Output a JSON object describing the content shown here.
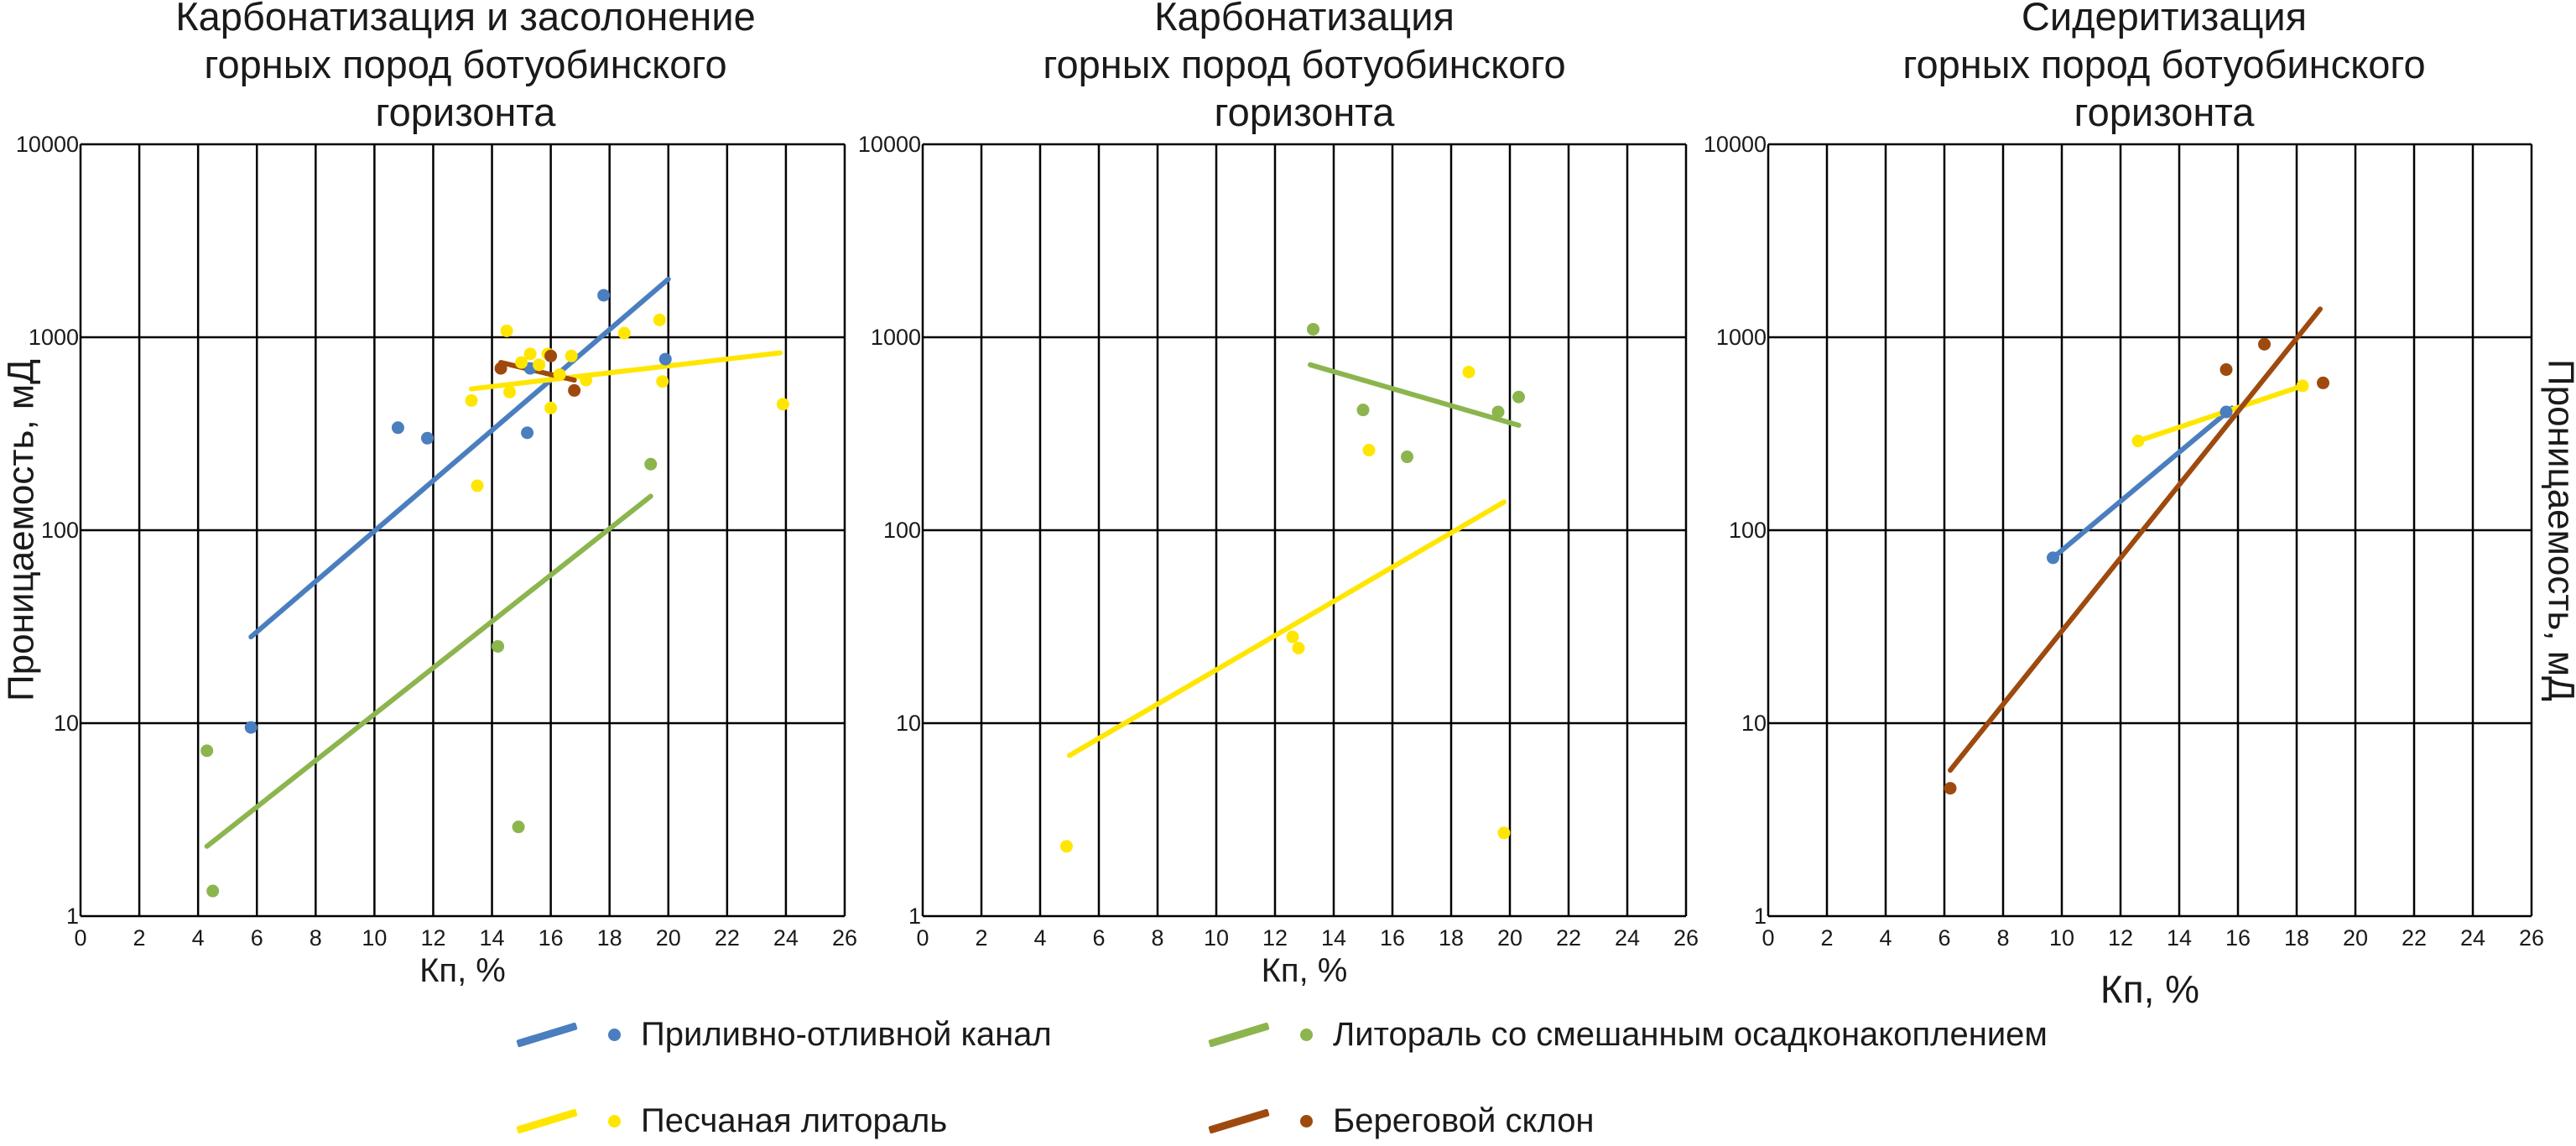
{
  "colors": {
    "blue": "#4a7ebf",
    "green": "#8cb54e",
    "yellow": "#ffe600",
    "brown": "#9e4a0e",
    "grid": "#000000"
  },
  "legend": [
    {
      "label": "Приливно-отливной канал",
      "color_key": "blue"
    },
    {
      "label": "Литораль со смешанным осадконакоплением",
      "color_key": "green"
    },
    {
      "label": "Песчаная литораль",
      "color_key": "yellow"
    },
    {
      "label": "Береговой склон",
      "color_key": "brown"
    }
  ],
  "chart_data": [
    {
      "type": "scatter",
      "title": "Карбонатизация и засолонение горных пород ботуобинского горизонта",
      "title_lines": [
        "Карбонатизация и засолонение",
        "горных пород ботуобинского",
        "горизонта"
      ],
      "xlabel": "Кп, %",
      "ylabel": "Проницаемость, мД",
      "xlim": [
        0,
        26
      ],
      "ylim": [
        1,
        10000
      ],
      "yscale": "log",
      "x_ticks": [
        "0",
        "2",
        "4",
        "6",
        "8",
        "10",
        "12",
        "14",
        "16",
        "18",
        "20",
        "22",
        "24",
        "26"
      ],
      "y_ticks": [
        "1",
        "10",
        "100",
        "1000",
        "10000"
      ],
      "grid": true,
      "series": [
        {
          "name": "Приливно-отливной канал",
          "color_key": "blue",
          "points": [
            [
              5.8,
              9.5
            ],
            [
              10.8,
              340
            ],
            [
              11.8,
              300
            ],
            [
              15.2,
              320
            ],
            [
              15.3,
              690
            ],
            [
              17.8,
              1650
            ],
            [
              19.9,
              770
            ]
          ],
          "trend": [
            [
              5.8,
              28
            ],
            [
              20.0,
              2000
            ]
          ]
        },
        {
          "name": "Литораль со смешанным осадконакоплением",
          "color_key": "green",
          "points": [
            [
              4.3,
              7.2
            ],
            [
              4.5,
              1.35
            ],
            [
              14.2,
              25
            ],
            [
              14.9,
              2.9
            ],
            [
              19.4,
              220
            ]
          ],
          "trend": [
            [
              4.3,
              2.3
            ],
            [
              19.4,
              150
            ]
          ]
        },
        {
          "name": "Песчаная литораль",
          "color_key": "yellow",
          "points": [
            [
              13.3,
              470
            ],
            [
              13.5,
              170
            ],
            [
              14.5,
              1080
            ],
            [
              14.6,
              520
            ],
            [
              15.0,
              740
            ],
            [
              15.3,
              820
            ],
            [
              15.6,
              720
            ],
            [
              15.9,
              820
            ],
            [
              16.0,
              430
            ],
            [
              16.3,
              640
            ],
            [
              16.7,
              800
            ],
            [
              17.2,
              600
            ],
            [
              18.5,
              1050
            ],
            [
              19.7,
              1230
            ],
            [
              19.8,
              590
            ],
            [
              23.9,
              450
            ]
          ],
          "trend": [
            [
              13.3,
              540
            ],
            [
              23.8,
              830
            ]
          ]
        },
        {
          "name": "Береговой склон",
          "color_key": "brown",
          "points": [
            [
              14.3,
              690
            ],
            [
              16.0,
              800
            ],
            [
              16.8,
              530
            ]
          ],
          "trend": [
            [
              14.3,
              740
            ],
            [
              16.8,
              600
            ]
          ]
        }
      ]
    },
    {
      "type": "scatter",
      "title": "Карбонатизация горных пород ботуобинского горизонта",
      "title_lines": [
        "Карбонатизация",
        "горных пород ботуобинского",
        "горизонта"
      ],
      "xlabel": "Кп, %",
      "ylabel": "",
      "xlim": [
        0,
        26
      ],
      "ylim": [
        1,
        10000
      ],
      "yscale": "log",
      "x_ticks": [
        "0",
        "2",
        "4",
        "6",
        "8",
        "10",
        "12",
        "14",
        "16",
        "18",
        "20",
        "22",
        "24",
        "26"
      ],
      "y_ticks": [
        "1",
        "10",
        "100",
        "1000",
        "10000"
      ],
      "grid": true,
      "series": [
        {
          "name": "Литораль со смешанным осадконакоплением",
          "color_key": "green",
          "points": [
            [
              13.3,
              1100
            ],
            [
              15.0,
              420
            ],
            [
              16.5,
              240
            ],
            [
              19.6,
              410
            ],
            [
              20.3,
              490
            ]
          ],
          "trend": [
            [
              13.2,
              720
            ],
            [
              20.3,
              350
            ]
          ]
        },
        {
          "name": "Песчаная литораль",
          "color_key": "yellow",
          "points": [
            [
              4.9,
              2.3
            ],
            [
              12.6,
              28
            ],
            [
              12.8,
              24.5
            ],
            [
              15.2,
              260
            ],
            [
              18.6,
              660
            ],
            [
              19.8,
              2.7
            ]
          ],
          "trend": [
            [
              5.0,
              6.8
            ],
            [
              19.8,
              140
            ]
          ]
        }
      ]
    },
    {
      "type": "scatter",
      "title": "Сидеритизация горных пород ботуобинского горизонта",
      "title_lines": [
        "Сидеритизация",
        "горных пород ботуобинского",
        "горизонта"
      ],
      "xlabel": "Кп, %",
      "ylabel": "Проницаемость, мД",
      "xlim": [
        0,
        26
      ],
      "ylim": [
        1,
        10000
      ],
      "yscale": "log",
      "x_ticks": [
        "0",
        "2",
        "4",
        "6",
        "8",
        "10",
        "12",
        "14",
        "16",
        "18",
        "20",
        "22",
        "24",
        "26"
      ],
      "y_ticks": [
        "1",
        "10",
        "100",
        "1000",
        "10000"
      ],
      "grid": true,
      "series": [
        {
          "name": "Приливно-отливной канал",
          "color_key": "blue",
          "points": [
            [
              9.7,
              72
            ],
            [
              15.6,
              410
            ]
          ],
          "trend": [
            [
              9.7,
              72
            ],
            [
              15.8,
              430
            ]
          ]
        },
        {
          "name": "Песчаная литораль",
          "color_key": "yellow",
          "points": [
            [
              12.6,
              290
            ],
            [
              18.2,
              560
            ]
          ],
          "trend": [
            [
              12.6,
              290
            ],
            [
              18.2,
              560
            ]
          ]
        },
        {
          "name": "Береговой склон",
          "color_key": "brown",
          "points": [
            [
              6.2,
              4.6
            ],
            [
              15.6,
              680
            ],
            [
              16.9,
              920
            ],
            [
              18.9,
              580
            ]
          ],
          "trend": [
            [
              6.2,
              5.7
            ],
            [
              18.8,
              1400
            ]
          ]
        }
      ]
    }
  ]
}
